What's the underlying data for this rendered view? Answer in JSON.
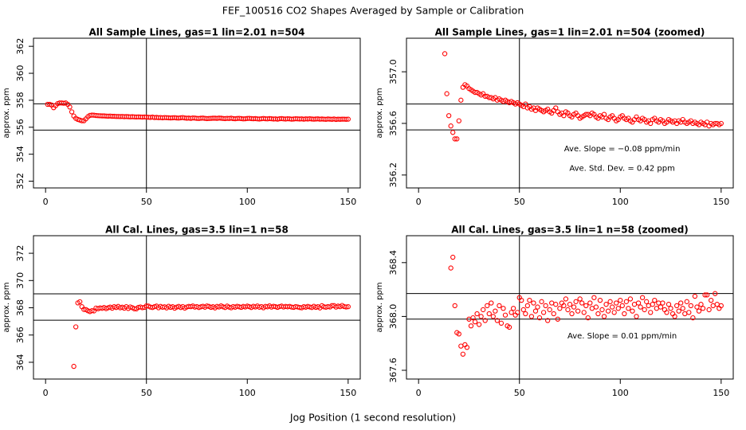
{
  "title": "FEF_100516  CO2 Shapes Averaged by Sample or Calibration",
  "xlabel": "Jog Position (1 second resolution)",
  "chart_data": [
    {
      "type": "scatter",
      "title": "All Sample Lines, gas=1 lin=2.01 n=504",
      "ylabel": "approx. ppm",
      "color": "#ff0000",
      "xlim": [
        -6,
        156
      ],
      "ylim": [
        351.5,
        362.6
      ],
      "xticks": [
        0,
        50,
        100,
        150
      ],
      "yticks": [
        352,
        354,
        356,
        358,
        360,
        362
      ],
      "hlines": [
        357.74,
        355.79
      ],
      "vline": 50,
      "annotations": [],
      "x": [
        1,
        2,
        3,
        4,
        5,
        6,
        7,
        8,
        9,
        10,
        11,
        12,
        13,
        14,
        15,
        16,
        17,
        18,
        19,
        20,
        21,
        22,
        23,
        24,
        25,
        26,
        27,
        28,
        29,
        30,
        31,
        32,
        33,
        34,
        35,
        36,
        37,
        38,
        39,
        40,
        41,
        42,
        43,
        44,
        45,
        46,
        47,
        48,
        49,
        50,
        51,
        52,
        53,
        54,
        55,
        56,
        57,
        58,
        59,
        60,
        61,
        62,
        63,
        64,
        65,
        66,
        67,
        68,
        69,
        70,
        71,
        72,
        73,
        74,
        75,
        76,
        77,
        78,
        79,
        80,
        81,
        82,
        83,
        84,
        85,
        86,
        87,
        88,
        89,
        90,
        91,
        92,
        93,
        94,
        95,
        96,
        97,
        98,
        99,
        100,
        101,
        102,
        103,
        104,
        105,
        106,
        107,
        108,
        109,
        110,
        111,
        112,
        113,
        114,
        115,
        116,
        117,
        118,
        119,
        120,
        121,
        122,
        123,
        124,
        125,
        126,
        127,
        128,
        129,
        130,
        131,
        132,
        133,
        134,
        135,
        136,
        137,
        138,
        139,
        140,
        141,
        142,
        143,
        144,
        145,
        146,
        147,
        148,
        149,
        150
      ],
      "values": [
        357.7,
        357.7,
        357.65,
        357.45,
        357.6,
        357.75,
        357.8,
        357.8,
        357.78,
        357.8,
        357.7,
        357.5,
        357.14,
        356.83,
        356.66,
        356.58,
        356.53,
        356.48,
        356.48,
        356.62,
        356.78,
        356.88,
        356.9,
        356.89,
        356.87,
        356.86,
        356.85,
        356.84,
        356.84,
        356.83,
        356.82,
        356.83,
        356.81,
        356.81,
        356.8,
        356.8,
        356.79,
        356.8,
        356.78,
        356.79,
        356.78,
        356.77,
        356.78,
        356.77,
        356.76,
        356.77,
        356.76,
        356.75,
        356.76,
        356.75,
        356.74,
        356.73,
        356.75,
        356.72,
        356.73,
        356.71,
        356.72,
        356.7,
        356.72,
        356.71,
        356.7,
        356.69,
        356.7,
        356.71,
        356.69,
        356.68,
        356.7,
        356.72,
        356.69,
        356.67,
        356.68,
        356.66,
        356.69,
        356.68,
        356.66,
        356.65,
        356.67,
        356.68,
        356.66,
        356.64,
        356.65,
        356.66,
        356.67,
        356.67,
        356.66,
        356.68,
        356.67,
        356.65,
        356.64,
        356.66,
        356.65,
        356.67,
        356.64,
        356.63,
        356.65,
        356.66,
        356.64,
        356.62,
        356.63,
        356.65,
        356.66,
        356.64,
        356.63,
        356.64,
        356.62,
        356.61,
        356.63,
        356.65,
        356.63,
        356.62,
        356.64,
        356.63,
        356.61,
        356.62,
        356.6,
        356.63,
        356.64,
        356.62,
        356.61,
        356.63,
        356.62,
        356.6,
        356.61,
        356.63,
        356.62,
        356.61,
        356.62,
        356.6,
        356.62,
        356.61,
        356.63,
        356.61,
        356.6,
        356.61,
        356.62,
        356.6,
        356.61,
        356.6,
        356.59,
        356.61,
        356.6,
        356.59,
        356.61,
        356.58,
        356.6,
        356.59,
        356.6,
        356.6,
        356.59,
        356.6
      ]
    },
    {
      "type": "scatter",
      "title": "All Sample Lines, gas=1 lin=2.01 n=504 (zoomed)",
      "ylabel": "approx. ppm",
      "color": "#ff0000",
      "xlim": [
        -6,
        156
      ],
      "ylim": [
        356.1,
        357.26
      ],
      "xticks": [
        0,
        50,
        100,
        150
      ],
      "yticks": [
        356.2,
        356.6,
        {
          "value": 357,
          "label": "357.0"
        }
      ],
      "hlines": [
        356.75,
        356.55
      ],
      "vline": 50,
      "annotations": [
        "Ave. Slope =  −0.08  ppm/min",
        "Ave. Std. Dev. =  0.42  ppm"
      ],
      "x": [
        13,
        14,
        15,
        16,
        17,
        18,
        19,
        20,
        21,
        22,
        23,
        24,
        25,
        26,
        27,
        28,
        29,
        30,
        31,
        32,
        33,
        34,
        35,
        36,
        37,
        38,
        39,
        40,
        41,
        42,
        43,
        44,
        45,
        46,
        47,
        48,
        49,
        50,
        51,
        52,
        53,
        54,
        55,
        56,
        57,
        58,
        59,
        60,
        61,
        62,
        63,
        64,
        65,
        66,
        67,
        68,
        69,
        70,
        71,
        72,
        73,
        74,
        75,
        76,
        77,
        78,
        79,
        80,
        81,
        82,
        83,
        84,
        85,
        86,
        87,
        88,
        89,
        90,
        91,
        92,
        93,
        94,
        95,
        96,
        97,
        98,
        99,
        100,
        101,
        102,
        103,
        104,
        105,
        106,
        107,
        108,
        109,
        110,
        111,
        112,
        113,
        114,
        115,
        116,
        117,
        118,
        119,
        120,
        121,
        122,
        123,
        124,
        125,
        126,
        127,
        128,
        129,
        130,
        131,
        132,
        133,
        134,
        135,
        136,
        137,
        138,
        139,
        140,
        141,
        142,
        143,
        144,
        145,
        146,
        147,
        148,
        149,
        150
      ],
      "values": [
        357.14,
        356.83,
        356.66,
        356.58,
        356.53,
        356.48,
        356.48,
        356.62,
        356.78,
        356.88,
        356.9,
        356.89,
        356.87,
        356.86,
        356.85,
        356.84,
        356.84,
        356.83,
        356.82,
        356.83,
        356.81,
        356.81,
        356.8,
        356.8,
        356.79,
        356.8,
        356.78,
        356.79,
        356.78,
        356.77,
        356.78,
        356.77,
        356.76,
        356.77,
        356.76,
        356.75,
        356.76,
        356.75,
        356.74,
        356.73,
        356.75,
        356.72,
        356.73,
        356.71,
        356.72,
        356.7,
        356.72,
        356.71,
        356.7,
        356.69,
        356.7,
        356.71,
        356.69,
        356.68,
        356.7,
        356.72,
        356.69,
        356.67,
        356.68,
        356.66,
        356.69,
        356.68,
        356.66,
        356.65,
        356.67,
        356.68,
        356.66,
        356.64,
        356.65,
        356.66,
        356.67,
        356.67,
        356.66,
        356.68,
        356.67,
        356.65,
        356.64,
        356.66,
        356.65,
        356.67,
        356.64,
        356.63,
        356.65,
        356.66,
        356.64,
        356.62,
        356.63,
        356.65,
        356.66,
        356.64,
        356.63,
        356.64,
        356.62,
        356.61,
        356.63,
        356.65,
        356.63,
        356.62,
        356.64,
        356.63,
        356.61,
        356.62,
        356.6,
        356.63,
        356.64,
        356.62,
        356.61,
        356.63,
        356.62,
        356.6,
        356.61,
        356.63,
        356.62,
        356.61,
        356.62,
        356.6,
        356.62,
        356.61,
        356.63,
        356.61,
        356.6,
        356.61,
        356.62,
        356.6,
        356.61,
        356.6,
        356.59,
        356.61,
        356.6,
        356.59,
        356.61,
        356.58,
        356.6,
        356.59,
        356.6,
        356.6,
        356.59,
        356.6
      ]
    },
    {
      "type": "scatter",
      "title": "All Cal. Lines, gas=3.5 lin=1 n=58",
      "ylabel": "approx. ppm",
      "color": "#ff0000",
      "xlim": [
        -6,
        156
      ],
      "ylim": [
        362.77,
        373.29
      ],
      "xticks": [
        0,
        50,
        100,
        150
      ],
      "yticks": [
        364,
        366,
        368,
        370,
        372
      ],
      "hlines": [
        369.02,
        367.09
      ],
      "vline": 50,
      "annotations": [],
      "x": [
        14,
        15,
        16,
        17,
        18,
        19,
        20,
        21,
        22,
        23,
        24,
        25,
        26,
        27,
        28,
        29,
        30,
        31,
        32,
        33,
        34,
        35,
        36,
        37,
        38,
        39,
        40,
        41,
        42,
        43,
        44,
        45,
        46,
        47,
        48,
        49,
        50,
        51,
        52,
        53,
        54,
        55,
        56,
        57,
        58,
        59,
        60,
        61,
        62,
        63,
        64,
        65,
        66,
        67,
        68,
        69,
        70,
        71,
        72,
        73,
        74,
        75,
        76,
        77,
        78,
        79,
        80,
        81,
        82,
        83,
        84,
        85,
        86,
        87,
        88,
        89,
        90,
        91,
        92,
        93,
        94,
        95,
        96,
        97,
        98,
        99,
        100,
        101,
        102,
        103,
        104,
        105,
        106,
        107,
        108,
        109,
        110,
        111,
        112,
        113,
        114,
        115,
        116,
        117,
        118,
        119,
        120,
        121,
        122,
        123,
        124,
        125,
        126,
        127,
        128,
        129,
        130,
        131,
        132,
        133,
        134,
        135,
        136,
        137,
        138,
        139,
        140,
        141,
        142,
        143,
        144,
        145,
        146,
        147,
        148,
        149,
        150
      ],
      "values": [
        363.7,
        366.6,
        368.36,
        368.44,
        368.08,
        367.88,
        367.87,
        367.78,
        367.72,
        367.79,
        367.77,
        367.98,
        367.93,
        367.99,
        367.96,
        368.02,
        367.94,
        368.0,
        368.05,
        367.97,
        368.08,
        368.02,
        368.1,
        368.0,
        368.04,
        367.97,
        368.08,
        367.95,
        368.06,
        368.01,
        367.93,
        367.92,
        368.03,
        368.06,
        368.01,
        368.03,
        368.14,
        368.12,
        368.05,
        368.02,
        368.08,
        368.12,
        368.0,
        368.1,
        368.04,
        368.07,
        367.99,
        368.11,
        368.03,
        368.08,
        367.97,
        368.05,
        368.1,
        368.02,
        368.09,
        367.98,
        368.06,
        368.1,
        368.08,
        368.13,
        368.05,
        368.09,
        368.02,
        368.07,
        368.11,
        368.04,
        368.13,
        368.1,
        368.03,
        368.08,
        367.99,
        368.1,
        368.06,
        368.14,
        368.07,
        368.02,
        368.12,
        368.05,
        368.0,
        368.09,
        368.04,
        368.11,
        368.07,
        368.03,
        368.1,
        368.06,
        368.12,
        368.08,
        368.02,
        368.11,
        368.06,
        368.13,
        368.04,
        368.09,
        368.0,
        368.1,
        368.07,
        368.14,
        368.05,
        368.11,
        368.08,
        368.03,
        368.09,
        368.12,
        368.06,
        368.1,
        368.07,
        368.1,
        368.05,
        368.03,
        368.09,
        368.06,
        368.02,
        368.0,
        368.08,
        368.04,
        368.1,
        368.06,
        368.02,
        368.11,
        368.03,
        368.08,
        367.99,
        368.15,
        368.07,
        368.04,
        368.09,
        368.06,
        368.16,
        368.16,
        368.05,
        368.12,
        368.08,
        368.17,
        368.09,
        368.06,
        368.08
      ]
    },
    {
      "type": "scatter",
      "title": "All Cal. Lines, gas=3.5 lin=1 n=58 (zoomed)",
      "ylabel": "approx. ppm",
      "color": "#ff0000",
      "xlim": [
        -6,
        156
      ],
      "ylim": [
        367.535,
        368.6
      ],
      "xticks": [
        0,
        50,
        100,
        150
      ],
      "yticks": [
        367.6,
        {
          "value": 368,
          "label": "368.0"
        },
        368.4
      ],
      "hlines": [
        368.17,
        367.98
      ],
      "vline": 50,
      "annotations": [
        "Ave. Slope =  0.01  ppm/min"
      ],
      "x": [
        16,
        17,
        18,
        19,
        20,
        21,
        22,
        23,
        24,
        25,
        26,
        27,
        28,
        29,
        30,
        31,
        32,
        33,
        34,
        35,
        36,
        37,
        38,
        39,
        40,
        41,
        42,
        43,
        44,
        45,
        46,
        47,
        48,
        49,
        50,
        51,
        52,
        53,
        54,
        55,
        56,
        57,
        58,
        59,
        60,
        61,
        62,
        63,
        64,
        65,
        66,
        67,
        68,
        69,
        70,
        71,
        72,
        73,
        74,
        75,
        76,
        77,
        78,
        79,
        80,
        81,
        82,
        83,
        84,
        85,
        86,
        87,
        88,
        89,
        90,
        91,
        92,
        93,
        94,
        95,
        96,
        97,
        98,
        99,
        100,
        101,
        102,
        103,
        104,
        105,
        106,
        107,
        108,
        109,
        110,
        111,
        112,
        113,
        114,
        115,
        116,
        117,
        118,
        119,
        120,
        121,
        122,
        123,
        124,
        125,
        126,
        127,
        128,
        129,
        130,
        131,
        132,
        133,
        134,
        135,
        136,
        137,
        138,
        139,
        140,
        141,
        142,
        143,
        144,
        145,
        146,
        147,
        148,
        149,
        150
      ],
      "values": [
        368.36,
        368.44,
        368.08,
        367.88,
        367.87,
        367.78,
        367.72,
        367.79,
        367.77,
        367.98,
        367.93,
        367.99,
        367.96,
        368.02,
        367.94,
        368.0,
        368.05,
        367.97,
        368.08,
        368.02,
        368.1,
        368.0,
        368.04,
        367.97,
        368.08,
        367.95,
        368.06,
        368.01,
        367.93,
        367.92,
        368.03,
        368.06,
        368.01,
        368.03,
        368.14,
        368.12,
        368.05,
        368.02,
        368.08,
        368.12,
        368.0,
        368.1,
        368.04,
        368.07,
        367.99,
        368.11,
        368.03,
        368.08,
        367.97,
        368.05,
        368.1,
        368.02,
        368.09,
        367.98,
        368.06,
        368.1,
        368.08,
        368.13,
        368.05,
        368.09,
        368.02,
        368.07,
        368.11,
        368.04,
        368.13,
        368.1,
        368.03,
        368.08,
        367.99,
        368.1,
        368.06,
        368.14,
        368.07,
        368.02,
        368.12,
        368.05,
        368.0,
        368.09,
        368.04,
        368.11,
        368.07,
        368.03,
        368.1,
        368.06,
        368.12,
        368.08,
        368.02,
        368.11,
        368.06,
        368.13,
        368.04,
        368.09,
        368.0,
        368.1,
        368.07,
        368.14,
        368.05,
        368.11,
        368.08,
        368.03,
        368.09,
        368.12,
        368.06,
        368.1,
        368.07,
        368.1,
        368.05,
        368.03,
        368.09,
        368.06,
        368.02,
        368.0,
        368.08,
        368.04,
        368.1,
        368.06,
        368.02,
        368.11,
        368.03,
        368.08,
        367.99,
        368.15,
        368.07,
        368.04,
        368.09,
        368.06,
        368.16,
        368.16,
        368.05,
        368.12,
        368.08,
        368.17,
        368.09,
        368.06,
        368.08
      ]
    }
  ]
}
